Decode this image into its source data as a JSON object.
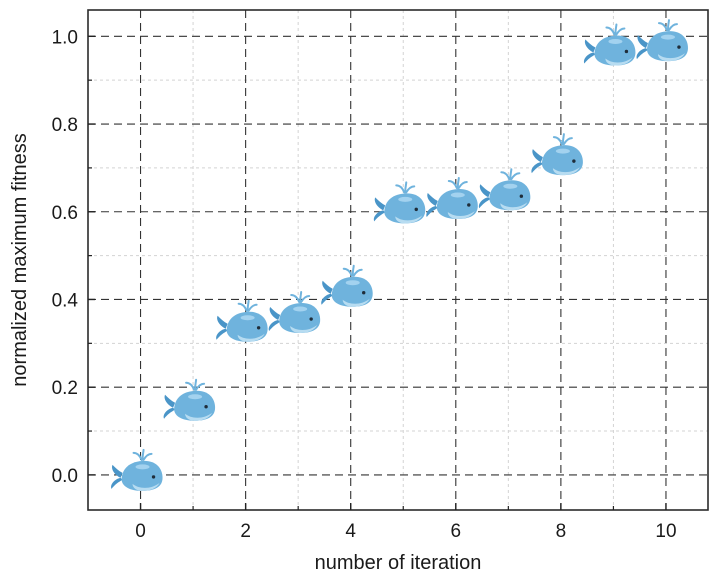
{
  "chart_data": {
    "type": "scatter",
    "title": "",
    "xlabel": "number of iteration",
    "ylabel": "normalized maximum fitness",
    "xlim": [
      -1,
      10.8
    ],
    "ylim": [
      -0.08,
      1.06
    ],
    "x_ticks": [
      0,
      2,
      4,
      6,
      8,
      10
    ],
    "y_ticks": [
      0.0,
      0.2,
      0.4,
      0.6,
      0.8,
      1.0
    ],
    "x_tick_labels": [
      "0",
      "2",
      "4",
      "6",
      "8",
      "10"
    ],
    "y_tick_labels": [
      "0.0",
      "0.2",
      "0.4",
      "0.6",
      "0.8",
      "1.0"
    ],
    "grid": true,
    "marker": "whale-icon",
    "marker_color": "#6fb3dd",
    "series": [
      {
        "x": [
          0,
          1,
          2,
          3,
          4,
          5,
          6,
          7,
          8,
          9,
          10
        ],
        "y": [
          0.0,
          0.16,
          0.34,
          0.36,
          0.42,
          0.61,
          0.62,
          0.64,
          0.72,
          0.97,
          0.98
        ]
      }
    ]
  }
}
